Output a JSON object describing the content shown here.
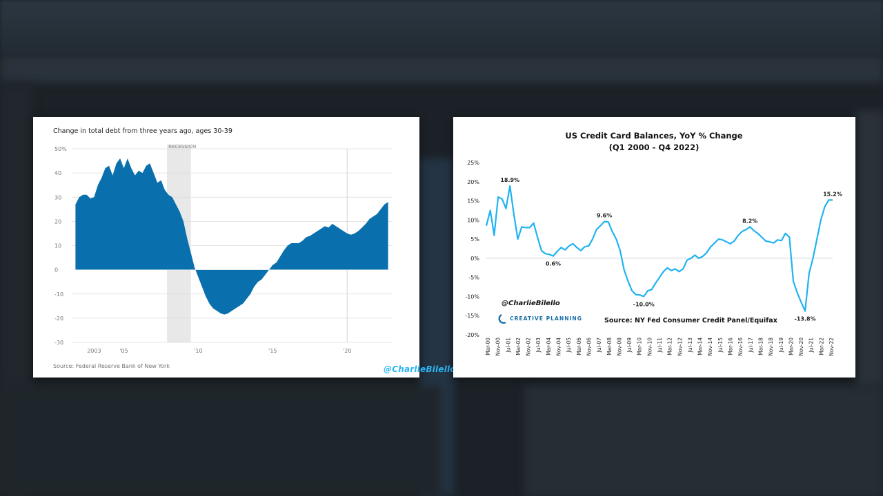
{
  "chart_data": [
    {
      "type": "area",
      "title": "Change in total debt from three years ago, ages 30-39",
      "y_unit": "%",
      "ylim": [
        -30,
        50
      ],
      "y_ticks": [
        {
          "v": 50,
          "label": "50%"
        },
        {
          "v": 40,
          "label": "40"
        },
        {
          "v": 30,
          "label": "30"
        },
        {
          "v": 20,
          "label": "20"
        },
        {
          "v": 10,
          "label": "10"
        },
        {
          "v": 0,
          "label": "0"
        },
        {
          "v": -10,
          "label": "-10"
        },
        {
          "v": -20,
          "label": "-20"
        },
        {
          "v": -30,
          "label": "-30"
        }
      ],
      "xlim": [
        2001.5,
        2023.0
      ],
      "x_ticks": [
        {
          "v": 2003,
          "label": "2003"
        },
        {
          "v": 2005,
          "label": "'05"
        },
        {
          "v": 2010,
          "label": "'10"
        },
        {
          "v": 2015,
          "label": "'15"
        },
        {
          "v": 2020,
          "label": "'20"
        }
      ],
      "recession": {
        "label": "RECESSION",
        "start": 2007.9,
        "end": 2009.5
      },
      "reference_line_x": 2020.0,
      "grid": true,
      "x": [
        2001.75,
        2002.0,
        2002.25,
        2002.5,
        2002.75,
        2003.0,
        2003.25,
        2003.5,
        2003.75,
        2004.0,
        2004.25,
        2004.5,
        2004.75,
        2005.0,
        2005.25,
        2005.5,
        2005.75,
        2006.0,
        2006.25,
        2006.5,
        2006.75,
        2007.0,
        2007.25,
        2007.5,
        2007.75,
        2008.0,
        2008.25,
        2008.5,
        2008.75,
        2009.0,
        2009.25,
        2009.5,
        2009.75,
        2010.0,
        2010.25,
        2010.5,
        2010.75,
        2011.0,
        2011.25,
        2011.5,
        2011.75,
        2012.0,
        2012.25,
        2012.5,
        2012.75,
        2013.0,
        2013.25,
        2013.5,
        2013.75,
        2014.0,
        2014.25,
        2014.5,
        2014.75,
        2015.0,
        2015.25,
        2015.5,
        2015.75,
        2016.0,
        2016.25,
        2016.5,
        2016.75,
        2017.0,
        2017.25,
        2017.5,
        2017.75,
        2018.0,
        2018.25,
        2018.5,
        2018.75,
        2019.0,
        2019.25,
        2019.5,
        2019.75,
        2020.0,
        2020.25,
        2020.5,
        2020.75,
        2021.0,
        2021.25,
        2021.5,
        2021.75,
        2022.0,
        2022.25,
        2022.5,
        2022.75
      ],
      "values": [
        27,
        30,
        31,
        31,
        29.5,
        30,
        35,
        38,
        42,
        43,
        39,
        44,
        46,
        42,
        46,
        42,
        39,
        41,
        40,
        43,
        44,
        40,
        36,
        37,
        33,
        31,
        30,
        27,
        24,
        20,
        13,
        7,
        1,
        -3,
        -7,
        -11,
        -14,
        -16,
        -17,
        -18,
        -18.5,
        -18,
        -17,
        -16,
        -15,
        -14,
        -12,
        -10,
        -7,
        -5,
        -4,
        -2,
        0,
        2,
        3,
        5.5,
        8,
        10,
        11,
        11,
        11,
        12,
        13.5,
        14,
        15,
        16,
        17,
        18,
        17.5,
        19,
        18,
        17,
        16,
        15,
        14.5,
        15,
        16,
        17.5,
        19,
        21,
        22,
        23,
        25,
        27,
        28
      ],
      "source": "Source: Federal Reserve Bank of New York",
      "watermark": "@CharlieBilello"
    },
    {
      "type": "line",
      "title": "US Credit Card Balances, YoY % Change",
      "subtitle": "(Q1 2000 - Q4 2022)",
      "y_unit": "%",
      "ylim": [
        -20,
        25
      ],
      "y_ticks": [
        {
          "v": 25,
          "label": "25%"
        },
        {
          "v": 20,
          "label": "20%"
        },
        {
          "v": 15,
          "label": "15%"
        },
        {
          "v": 10,
          "label": "10%"
        },
        {
          "v": 5,
          "label": "5%"
        },
        {
          "v": 0,
          "label": "0%"
        },
        {
          "v": -5,
          "label": "-5%"
        },
        {
          "v": -10,
          "label": "-10%"
        },
        {
          "v": -15,
          "label": "-15%"
        },
        {
          "v": -20,
          "label": "-20%"
        }
      ],
      "x_tick_labels": [
        "Mar-00",
        "Nov-00",
        "Jul-01",
        "Mar-02",
        "Nov-02",
        "Jul-03",
        "Mar-04",
        "Nov-04",
        "Jul-05",
        "Mar-06",
        "Nov-06",
        "Jul-07",
        "Mar-08",
        "Nov-08",
        "Jul-09",
        "Mar-10",
        "Nov-10",
        "Jul-11",
        "Mar-12",
        "Nov-12",
        "Jul-13",
        "Mar-14",
        "Nov-14",
        "Jul-15",
        "Mar-16",
        "Nov-16",
        "Jul-17",
        "Mar-18",
        "Nov-18",
        "Jul-19",
        "Mar-20",
        "Nov-20",
        "Jul-21",
        "Mar-22",
        "Nov-22"
      ],
      "values": [
        8.5,
        12.5,
        6,
        16,
        15.5,
        13,
        18.9,
        11.5,
        5,
        8.2,
        8,
        8,
        9.2,
        5.5,
        2,
        1.2,
        1,
        0.6,
        1.8,
        2.8,
        2.2,
        3.2,
        3.8,
        2.8,
        2,
        3,
        3.2,
        5,
        7.5,
        8.5,
        9.6,
        9.5,
        7,
        5,
        2,
        -3,
        -6,
        -8.5,
        -9.5,
        -9.6,
        -10.0,
        -8.5,
        -8.2,
        -6.5,
        -5,
        -3.5,
        -2.5,
        -3.2,
        -2.8,
        -3.5,
        -2.8,
        -0.5,
        0,
        0.8,
        0,
        0.5,
        1.5,
        3,
        4,
        5,
        4.8,
        4.3,
        3.8,
        4.5,
        6,
        7,
        7.5,
        8.2,
        7.2,
        6.5,
        5.5,
        4.5,
        4.3,
        4,
        4.8,
        4.6,
        6.5,
        5.5,
        -6,
        -9,
        -11.5,
        -13.8,
        -4,
        0,
        5,
        10,
        13.5,
        15.2,
        15.2
      ],
      "annotations": [
        {
          "index": 6,
          "label": "18.9%",
          "pos": "above"
        },
        {
          "index": 17,
          "label": "0.6%",
          "pos": "below"
        },
        {
          "index": 30,
          "label": "9.6%",
          "pos": "above"
        },
        {
          "index": 40,
          "label": "-10.0%",
          "pos": "below"
        },
        {
          "index": 67,
          "label": "8.2%",
          "pos": "above"
        },
        {
          "index": 81,
          "label": "-13.8%",
          "pos": "below"
        },
        {
          "index": 88,
          "label": "15.2%",
          "pos": "above"
        }
      ],
      "grid": true,
      "source": "Source: NY Fed Consumer Credit Panel/Equifax",
      "handle": "@CharlieBilello",
      "logo_text": "CREATIVE PLANNING",
      "line_color": "#1fb3f0"
    }
  ]
}
